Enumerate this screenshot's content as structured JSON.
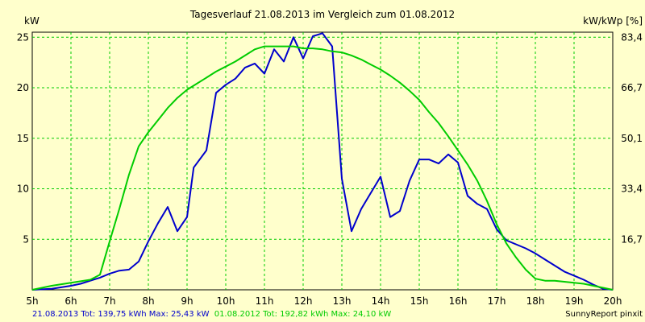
{
  "chart_data": {
    "type": "line",
    "title": "Tagesverlauf 21.08.2013 im Vergleich zum 01.08.2012",
    "ylabel_left": "kW",
    "ylabel_right": "kW/kWp [%]",
    "x_ticks": [
      "5h",
      "6h",
      "7h",
      "8h",
      "9h",
      "10h",
      "11h",
      "12h",
      "13h",
      "14h",
      "15h",
      "16h",
      "17h",
      "18h",
      "19h",
      "20h"
    ],
    "xlim": [
      5,
      20
    ],
    "y_ticks": [
      "5",
      "10",
      "15",
      "20",
      "25"
    ],
    "y_tick_values": [
      5,
      10,
      15,
      20,
      25
    ],
    "ylim": [
      0,
      25.5
    ],
    "y2_ticks": [
      "16,7",
      "33,4",
      "50,1",
      "66,7",
      "83,4"
    ],
    "grid": true,
    "series": [
      {
        "name": "21.08.2013",
        "color": "#0000cc",
        "x": [
          5,
          5.5,
          6,
          6.25,
          6.5,
          6.75,
          7,
          7.25,
          7.5,
          7.75,
          8,
          8.25,
          8.5,
          8.75,
          9,
          9.17,
          9.5,
          9.75,
          10,
          10.25,
          10.5,
          10.75,
          11,
          11.25,
          11.5,
          11.75,
          12,
          12.25,
          12.5,
          12.75,
          13,
          13.25,
          13.5,
          13.75,
          14,
          14.25,
          14.5,
          14.75,
          15,
          15.25,
          15.5,
          15.75,
          16,
          16.25,
          16.5,
          16.75,
          17,
          17.25,
          17.5,
          17.75,
          18,
          18.25,
          18.5,
          18.75,
          19,
          19.25,
          19.5,
          19.75,
          20
        ],
        "y": [
          0,
          0.1,
          0.4,
          0.6,
          0.9,
          1.2,
          1.6,
          1.9,
          2.0,
          2.8,
          4.8,
          6.6,
          8.2,
          5.8,
          7.2,
          12.1,
          13.8,
          19.5,
          20.3,
          20.9,
          22.0,
          22.4,
          21.4,
          23.8,
          22.6,
          25.0,
          22.9,
          25.1,
          25.4,
          24.1,
          11.0,
          5.8,
          8.0,
          9.6,
          11.2,
          7.2,
          7.8,
          10.8,
          12.9,
          12.9,
          12.5,
          13.4,
          12.6,
          9.3,
          8.5,
          8.0,
          6.0,
          4.9,
          4.5,
          4.1,
          3.6,
          3.0,
          2.4,
          1.8,
          1.4,
          1.0,
          0.5,
          0.1,
          0
        ]
      },
      {
        "name": "01.08.2012",
        "color": "#00cc00",
        "x": [
          5,
          5.5,
          6,
          6.5,
          6.75,
          7,
          7.25,
          7.5,
          7.75,
          8,
          8.25,
          8.5,
          8.75,
          9,
          9.25,
          9.5,
          9.75,
          10,
          10.25,
          10.5,
          10.75,
          11,
          11.25,
          11.5,
          11.75,
          12,
          12.25,
          12.5,
          12.75,
          13,
          13.25,
          13.5,
          13.75,
          14,
          14.25,
          14.5,
          14.75,
          15,
          15.25,
          15.5,
          15.75,
          16,
          16.25,
          16.5,
          16.75,
          17,
          17.25,
          17.5,
          17.75,
          18,
          18.25,
          18.5,
          18.75,
          19,
          19.25,
          19.5,
          19.75,
          20
        ],
        "y": [
          0,
          0.4,
          0.7,
          1.0,
          1.5,
          4.8,
          8.0,
          11.4,
          14.2,
          15.6,
          16.8,
          18.0,
          19.0,
          19.8,
          20.4,
          21.0,
          21.6,
          22.1,
          22.6,
          23.2,
          23.8,
          24.1,
          24.1,
          24.1,
          24.1,
          23.9,
          23.9,
          23.8,
          23.6,
          23.5,
          23.2,
          22.8,
          22.3,
          21.8,
          21.2,
          20.5,
          19.7,
          18.8,
          17.6,
          16.5,
          15.2,
          13.8,
          12.4,
          10.8,
          8.8,
          6.5,
          4.6,
          3.2,
          2.0,
          1.1,
          0.9,
          0.9,
          0.8,
          0.7,
          0.6,
          0.4,
          0.2,
          0
        ]
      }
    ]
  },
  "footer": {
    "legend_blue": "21.08.2013 Tot: 139,75 kWh Max: 25,43 kW",
    "legend_green": "01.08.2012 Tot: 192,82 kWh Max: 24,10 kW",
    "source": "SunnyReport pinxit"
  }
}
